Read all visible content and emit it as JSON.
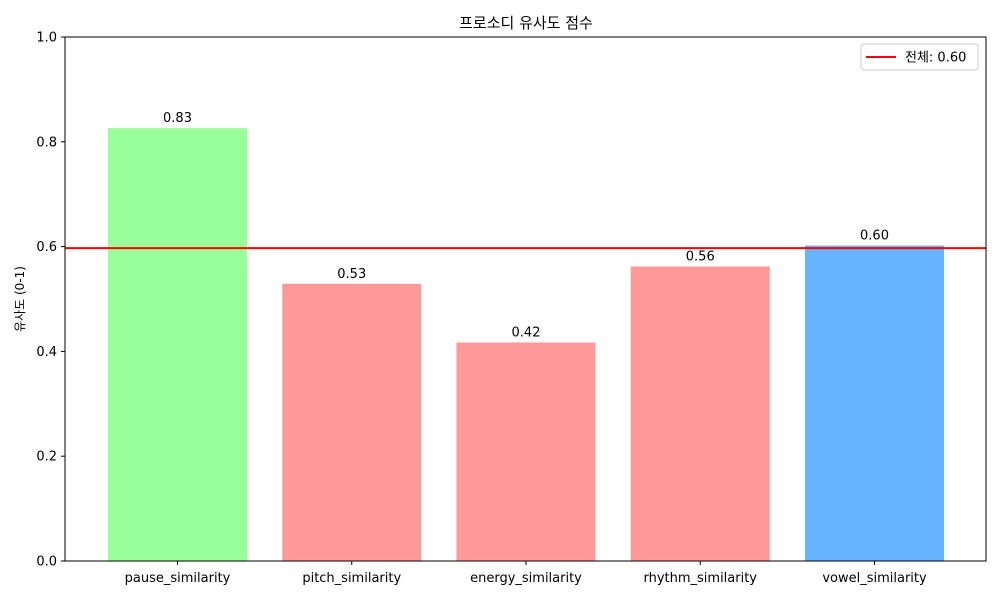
{
  "chart_data": {
    "type": "bar",
    "title": "프로소디 유사도 점수",
    "xlabel": "",
    "ylabel": "유사도 (0-1)",
    "ylim": [
      0,
      1.0
    ],
    "yticks": [
      "0.0",
      "0.2",
      "0.4",
      "0.6",
      "0.8",
      "1.0"
    ],
    "categories": [
      "pause_similarity",
      "pitch_similarity",
      "energy_similarity",
      "rhythm_similarity",
      "vowel_similarity"
    ],
    "values": [
      0.826,
      0.529,
      0.417,
      0.562,
      0.602
    ],
    "value_labels": [
      "0.83",
      "0.53",
      "0.42",
      "0.56",
      "0.60"
    ],
    "bar_colors": [
      "#99ff99",
      "#ff9999",
      "#ff9999",
      "#ff9999",
      "#66b3ff"
    ],
    "reference_line": {
      "value": 0.597,
      "color": "#ff0000",
      "label": "전체: 0.60"
    },
    "legend_position": "top-right",
    "grid": false
  }
}
